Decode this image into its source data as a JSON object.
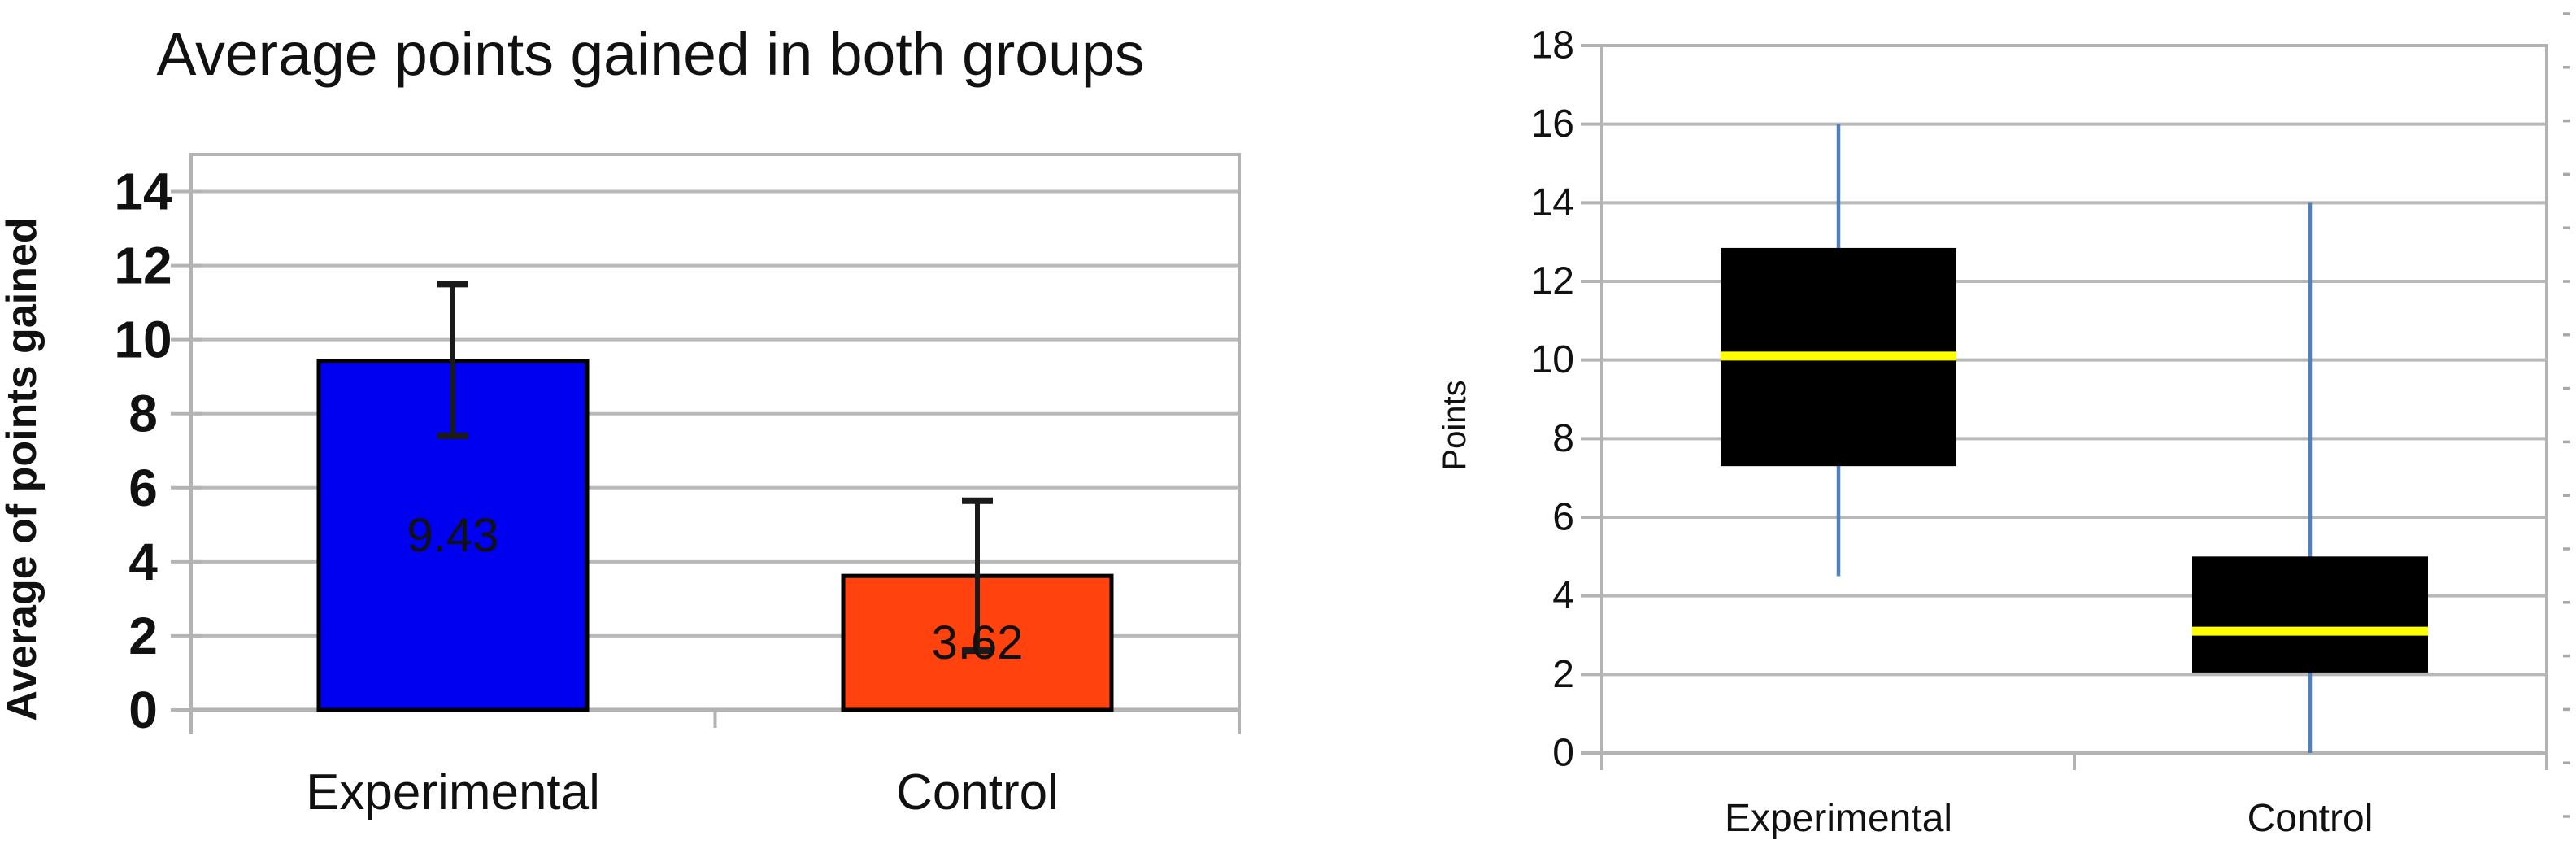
{
  "page": {
    "background": "#ffffff"
  },
  "chart_data": [
    {
      "type": "bar",
      "title": "Average points gained in both groups",
      "xlabel": "",
      "ylabel": "Average of points gained",
      "categories": [
        "Experimental",
        "Control"
      ],
      "series": [
        {
          "name": "Average of points gained",
          "values": [
            9.43,
            3.62
          ]
        }
      ],
      "bar_labels": [
        "9.43",
        "3.62"
      ],
      "error_bars": [
        {
          "low": 7.4,
          "high": 11.5
        },
        {
          "low": 1.6,
          "high": 5.65
        }
      ],
      "ylim": [
        0,
        15
      ],
      "yticks": [
        0,
        2,
        4,
        6,
        8,
        10,
        12,
        14
      ],
      "grid": true,
      "legend": "none",
      "colors": {
        "bars": [
          "#0000f0",
          "#ff420e"
        ],
        "bar_border": "#000000",
        "bar_label_text": [
          "#d9d9d9",
          "#1a1a1a"
        ],
        "error_bar": "#1a1a1a",
        "gridline": "#b9b9b9",
        "axis_line": "#a6a6a6",
        "plot_border": "#b3b3b3",
        "text": "#111111"
      }
    },
    {
      "type": "boxplot",
      "title": "",
      "xlabel": "",
      "ylabel": "Points",
      "categories": [
        "Experimental",
        "Control"
      ],
      "boxes": [
        {
          "whisker_low": 4.5,
          "q1": 7.3,
          "median": 10.1,
          "q3": 12.85,
          "whisker_high": 16
        },
        {
          "whisker_low": 0,
          "q1": 2.05,
          "median": 3.1,
          "q3": 5,
          "whisker_high": 14
        }
      ],
      "ylim": [
        0,
        18
      ],
      "yticks": [
        0,
        2,
        4,
        6,
        8,
        10,
        12,
        14,
        16,
        18
      ],
      "grid": true,
      "legend": "none",
      "colors": {
        "box_fill": "#000000",
        "median": "#ffff00",
        "whisker": "#4f81bd",
        "gridline": "#b9b9b9",
        "plot_border": "#b3b3b3",
        "text": "#111111"
      }
    }
  ]
}
